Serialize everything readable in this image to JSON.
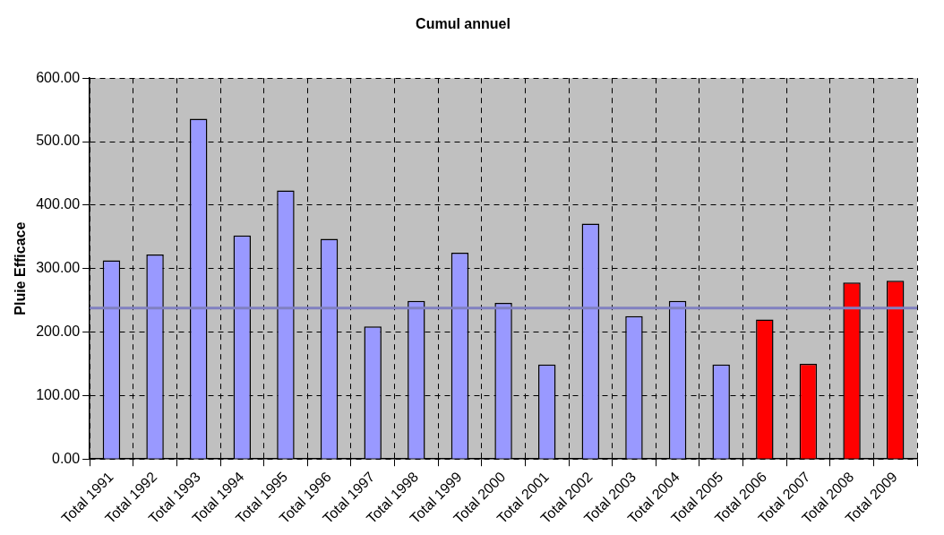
{
  "chart_data": {
    "type": "bar",
    "title": "Cumul annuel",
    "ylabel": "Pluie Efficace",
    "categories": [
      "Total 1991",
      "Total 1992",
      "Total 1993",
      "Total 1994",
      "Total 1995",
      "Total 1996",
      "Total 1997",
      "Total 1998",
      "Total 1999",
      "Total 2000",
      "Total 2001",
      "Total 2002",
      "Total 2003",
      "Total 2004",
      "Total 2005",
      "Total 2006",
      "Total 2007",
      "Total 2008",
      "Total 2009"
    ],
    "values": [
      313,
      322,
      536,
      352,
      423,
      347,
      209,
      249,
      325,
      246,
      149,
      371,
      225,
      249,
      149,
      220,
      150,
      278,
      281
    ],
    "colors": [
      "#9999ff",
      "#9999ff",
      "#9999ff",
      "#9999ff",
      "#9999ff",
      "#9999ff",
      "#9999ff",
      "#9999ff",
      "#9999ff",
      "#9999ff",
      "#9999ff",
      "#9999ff",
      "#9999ff",
      "#9999ff",
      "#9999ff",
      "#ff0000",
      "#ff0000",
      "#ff0000",
      "#ff0000"
    ],
    "ylim": [
      0,
      600
    ],
    "yticks": [
      {
        "value": 0,
        "label": "0.00"
      },
      {
        "value": 100,
        "label": "100.00"
      },
      {
        "value": 200,
        "label": "200.00"
      },
      {
        "value": 300,
        "label": "300.00"
      },
      {
        "value": 400,
        "label": "400.00"
      },
      {
        "value": 500,
        "label": "500.00"
      },
      {
        "value": 600,
        "label": "600.00"
      }
    ],
    "ref_lines": [
      {
        "axis": "y",
        "value": 238,
        "color": "#8080c0"
      }
    ],
    "grid": true,
    "legend": false
  }
}
